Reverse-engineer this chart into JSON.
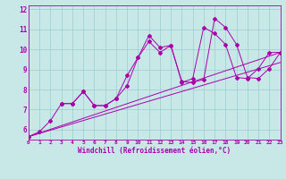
{
  "xlabel": "Windchill (Refroidissement éolien,°C)",
  "ylabel": "",
  "xlim": [
    0,
    23
  ],
  "ylim": [
    5.5,
    12.2
  ],
  "xticks": [
    0,
    1,
    2,
    3,
    4,
    5,
    6,
    7,
    8,
    9,
    10,
    11,
    12,
    13,
    14,
    15,
    16,
    17,
    18,
    19,
    20,
    21,
    22,
    23
  ],
  "yticks": [
    6,
    7,
    8,
    9,
    10,
    11,
    12
  ],
  "bg_color": "#c8e8e8",
  "line_color": "#aa00aa",
  "grid_color": "#99cccc",
  "series_main": {
    "x": [
      0,
      1,
      2,
      3,
      4,
      5,
      6,
      7,
      8,
      9,
      10,
      11,
      12,
      13,
      14,
      15,
      16,
      17,
      18,
      19,
      20,
      21,
      22,
      23
    ],
    "y": [
      5.65,
      5.9,
      6.45,
      7.3,
      7.3,
      7.9,
      7.2,
      7.2,
      7.55,
      8.7,
      9.6,
      10.7,
      10.1,
      10.2,
      8.4,
      8.35,
      8.5,
      11.55,
      11.1,
      10.25,
      8.6,
      8.55,
      9.05,
      9.85
    ]
  },
  "series_short": {
    "x": [
      3,
      4,
      5,
      6,
      7,
      8,
      9,
      10,
      11,
      12,
      13,
      14,
      15,
      16,
      17,
      18,
      19,
      20,
      21,
      22,
      23
    ],
    "y": [
      7.3,
      7.3,
      7.9,
      7.2,
      7.2,
      7.55,
      8.2,
      9.6,
      10.4,
      9.85,
      10.2,
      8.35,
      8.55,
      11.1,
      10.8,
      10.25,
      8.6,
      8.55,
      9.05,
      9.85,
      9.85
    ]
  },
  "regline1": {
    "x": [
      0,
      23
    ],
    "y": [
      5.65,
      9.85
    ]
  },
  "regline2": {
    "x": [
      0,
      23
    ],
    "y": [
      5.65,
      9.35
    ]
  }
}
